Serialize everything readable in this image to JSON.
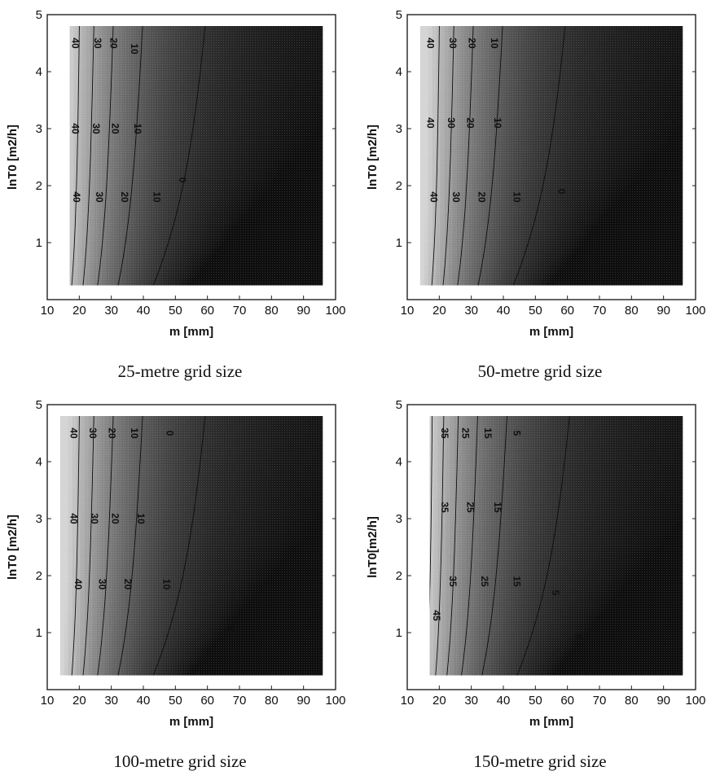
{
  "figure": {
    "xlabel": "m [mm]",
    "x_ticks": [
      "10",
      "20",
      "30",
      "40",
      "50",
      "60",
      "70",
      "80",
      "90",
      "100"
    ],
    "y_ticks": [
      "1",
      "2",
      "3",
      "4",
      "5"
    ]
  },
  "panels": [
    {
      "caption": "25-metre grid size",
      "ylabel": "lnT0 [m2/h]",
      "contour_labels": [
        "40",
        "30",
        "20",
        "10",
        "40",
        "30",
        "20",
        "10",
        "40",
        "30",
        "20",
        "10",
        "0",
        "0"
      ]
    },
    {
      "caption": "50-metre grid size",
      "ylabel": "lnT0 [m2/h]",
      "contour_labels": [
        "40",
        "30",
        "20",
        "10",
        "40",
        "30",
        "20",
        "10",
        "40",
        "30",
        "20",
        "10",
        "0"
      ]
    },
    {
      "caption": "100-metre grid size",
      "ylabel": "lnT0 [m2/h]",
      "contour_labels": [
        "40",
        "30",
        "20",
        "10",
        "0",
        "40",
        "30",
        "20",
        "10",
        "40",
        "30",
        "20",
        "10",
        "0"
      ]
    },
    {
      "caption": "150-metre grid size",
      "ylabel": "lnT0[m2/h]",
      "contour_labels": [
        "35",
        "25",
        "15",
        "5",
        "35",
        "25",
        "15",
        "35",
        "25",
        "15",
        "45",
        "5",
        "-5"
      ]
    }
  ],
  "chart_data": [
    {
      "type": "heatmap",
      "title": "25-metre grid size",
      "xlabel": "m [mm]",
      "ylabel": "lnT0 [m2/h]",
      "xlim": [
        10,
        100
      ],
      "ylim": [
        0,
        5
      ],
      "x_ticks": [
        10,
        20,
        30,
        40,
        50,
        60,
        70,
        80,
        90,
        100
      ],
      "y_ticks": [
        1,
        2,
        3,
        4,
        5
      ],
      "data_extent": {
        "x": [
          17,
          96
        ],
        "y": [
          0.25,
          4.8
        ]
      },
      "contour_levels": [
        40,
        30,
        20,
        10,
        0
      ],
      "value_range": [
        -5,
        50
      ],
      "shading": "light = high values, dark = low values",
      "contour_labels": [
        {
          "text": "40",
          "x": 18.5,
          "y": 4.5
        },
        {
          "text": "30",
          "x": 25.5,
          "y": 4.5
        },
        {
          "text": "20",
          "x": 30.5,
          "y": 4.5
        },
        {
          "text": "10",
          "x": 37,
          "y": 4.4
        },
        {
          "text": "40",
          "x": 18.5,
          "y": 3.0
        },
        {
          "text": "30",
          "x": 25,
          "y": 3.0
        },
        {
          "text": "20",
          "x": 31,
          "y": 3.0
        },
        {
          "text": "10",
          "x": 38,
          "y": 3.0
        },
        {
          "text": "40",
          "x": 19,
          "y": 1.8
        },
        {
          "text": "30",
          "x": 26,
          "y": 1.8
        },
        {
          "text": "20",
          "x": 34,
          "y": 1.8
        },
        {
          "text": "10",
          "x": 44,
          "y": 1.8
        },
        {
          "text": "0",
          "x": 52,
          "y": 2.1
        },
        {
          "text": "0",
          "x": 63,
          "y": 0.9
        }
      ]
    },
    {
      "type": "heatmap",
      "title": "50-metre grid size",
      "xlabel": "m [mm]",
      "ylabel": "lnT0 [m2/h]",
      "xlim": [
        10,
        100
      ],
      "ylim": [
        0,
        5
      ],
      "x_ticks": [
        10,
        20,
        30,
        40,
        50,
        60,
        70,
        80,
        90,
        100
      ],
      "y_ticks": [
        1,
        2,
        3,
        4,
        5
      ],
      "data_extent": {
        "x": [
          14,
          96
        ],
        "y": [
          0.25,
          4.8
        ]
      },
      "contour_levels": [
        40,
        30,
        20,
        10,
        0
      ],
      "value_range": [
        -5,
        50
      ],
      "shading": "light = high values, dark = low values",
      "contour_labels": [
        {
          "text": "40",
          "x": 17,
          "y": 4.5
        },
        {
          "text": "30",
          "x": 24,
          "y": 4.5
        },
        {
          "text": "20",
          "x": 30,
          "y": 4.5
        },
        {
          "text": "10",
          "x": 37,
          "y": 4.5
        },
        {
          "text": "40",
          "x": 17,
          "y": 3.1
        },
        {
          "text": "30",
          "x": 23.5,
          "y": 3.1
        },
        {
          "text": "20",
          "x": 29.5,
          "y": 3.1
        },
        {
          "text": "10",
          "x": 38,
          "y": 3.1
        },
        {
          "text": "40",
          "x": 18,
          "y": 1.8
        },
        {
          "text": "30",
          "x": 25,
          "y": 1.8
        },
        {
          "text": "20",
          "x": 33,
          "y": 1.8
        },
        {
          "text": "10",
          "x": 44,
          "y": 1.8
        },
        {
          "text": "0",
          "x": 58,
          "y": 1.9
        }
      ]
    },
    {
      "type": "heatmap",
      "title": "100-metre grid size",
      "xlabel": "m [mm]",
      "ylabel": "lnT0 [m2/h]",
      "xlim": [
        10,
        100
      ],
      "ylim": [
        0,
        5
      ],
      "x_ticks": [
        10,
        20,
        30,
        40,
        50,
        60,
        70,
        80,
        90,
        100
      ],
      "y_ticks": [
        1,
        2,
        3,
        4,
        5
      ],
      "data_extent": {
        "x": [
          14,
          96
        ],
        "y": [
          0.25,
          4.8
        ]
      },
      "contour_levels": [
        40,
        30,
        20,
        10,
        0
      ],
      "value_range": [
        -5,
        50
      ],
      "shading": "light = high values, dark = low values",
      "contour_labels": [
        {
          "text": "40",
          "x": 18,
          "y": 4.5
        },
        {
          "text": "30",
          "x": 24,
          "y": 4.5
        },
        {
          "text": "20",
          "x": 30,
          "y": 4.5
        },
        {
          "text": "10",
          "x": 37,
          "y": 4.5
        },
        {
          "text": "0",
          "x": 48,
          "y": 4.5
        },
        {
          "text": "40",
          "x": 18,
          "y": 3.0
        },
        {
          "text": "30",
          "x": 24.5,
          "y": 3.0
        },
        {
          "text": "20",
          "x": 31,
          "y": 3.0
        },
        {
          "text": "10",
          "x": 39,
          "y": 3.0
        },
        {
          "text": "40",
          "x": 19.5,
          "y": 1.85
        },
        {
          "text": "30",
          "x": 27,
          "y": 1.85
        },
        {
          "text": "20",
          "x": 35,
          "y": 1.85
        },
        {
          "text": "10",
          "x": 47,
          "y": 1.85
        },
        {
          "text": "0",
          "x": 67,
          "y": 1.05
        }
      ]
    },
    {
      "type": "heatmap",
      "title": "150-metre grid size",
      "xlabel": "m [mm]",
      "ylabel": "lnT0[m2/h]",
      "xlim": [
        10,
        100
      ],
      "ylim": [
        0,
        5
      ],
      "x_ticks": [
        10,
        20,
        30,
        40,
        50,
        60,
        70,
        80,
        90,
        100
      ],
      "y_ticks": [
        1,
        2,
        3,
        4,
        5
      ],
      "data_extent": {
        "x": [
          17,
          96
        ],
        "y": [
          0.25,
          4.8
        ]
      },
      "contour_levels": [
        45,
        35,
        25,
        15,
        5,
        -5
      ],
      "value_range": [
        -10,
        50
      ],
      "shading": "light = high values, dark = low values",
      "contour_labels": [
        {
          "text": "35",
          "x": 21.5,
          "y": 4.5
        },
        {
          "text": "25",
          "x": 28,
          "y": 4.5
        },
        {
          "text": "15",
          "x": 35,
          "y": 4.5
        },
        {
          "text": "5",
          "x": 44,
          "y": 4.5
        },
        {
          "text": "35",
          "x": 21.5,
          "y": 3.2
        },
        {
          "text": "25",
          "x": 29.5,
          "y": 3.2
        },
        {
          "text": "15",
          "x": 38,
          "y": 3.2
        },
        {
          "text": "35",
          "x": 24,
          "y": 1.9
        },
        {
          "text": "25",
          "x": 34,
          "y": 1.9
        },
        {
          "text": "15",
          "x": 44,
          "y": 1.9
        },
        {
          "text": "45",
          "x": 19,
          "y": 1.3
        },
        {
          "text": "5",
          "x": 56,
          "y": 1.7
        },
        {
          "text": "-5",
          "x": 63,
          "y": 0.95
        }
      ]
    }
  ]
}
